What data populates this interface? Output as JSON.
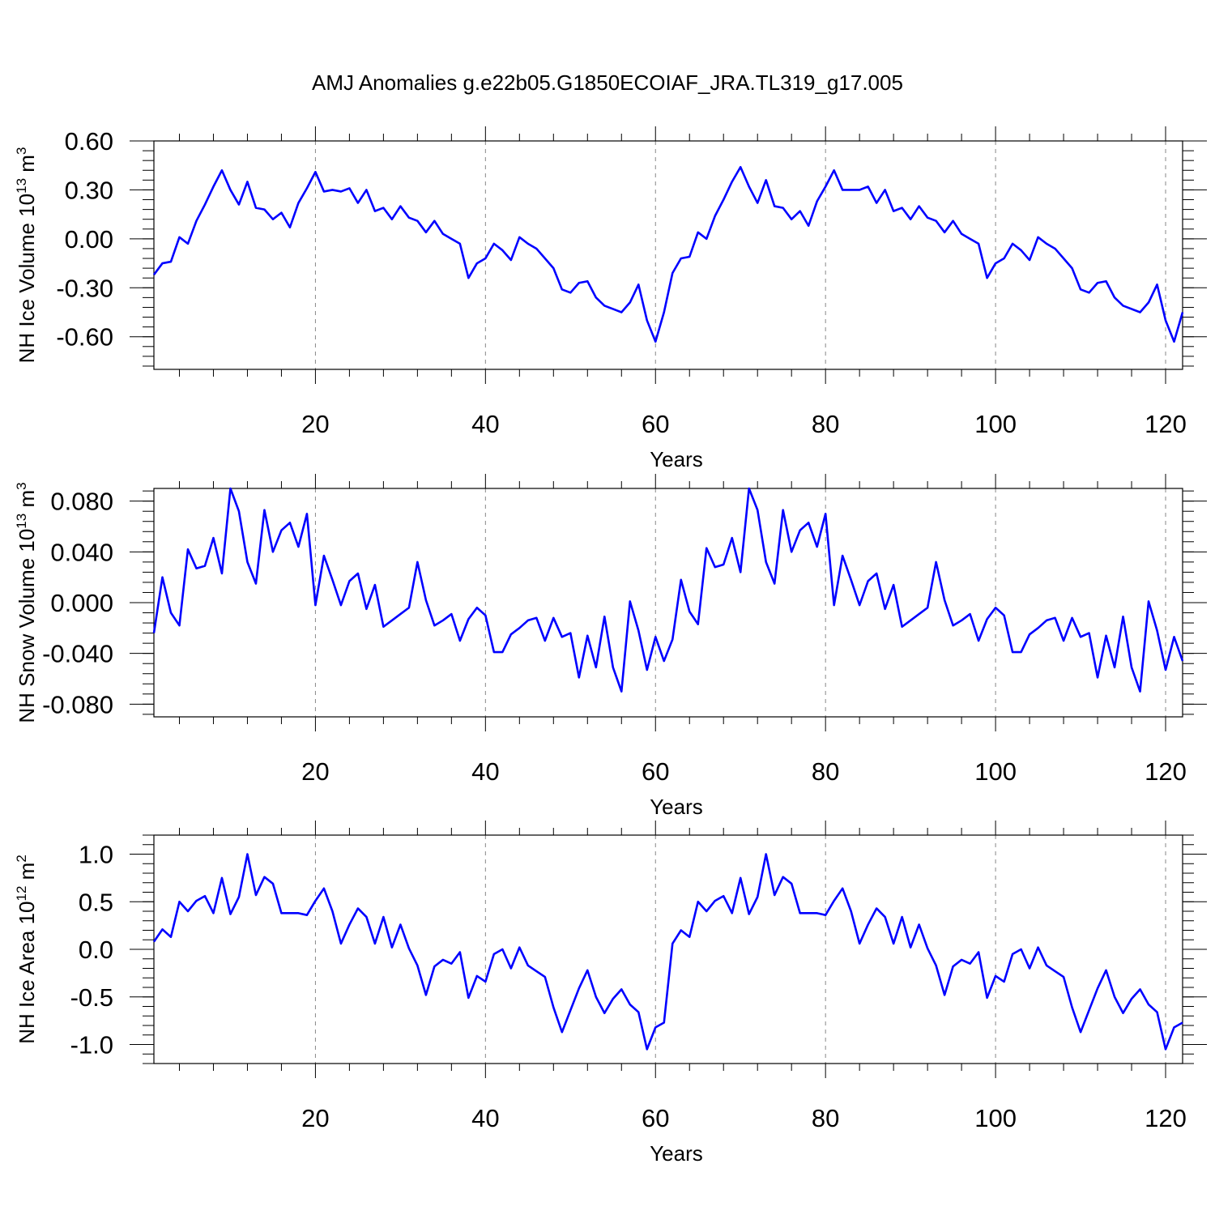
{
  "chart_data": [
    {
      "type": "line",
      "title": "AMJ Anomalies g.e22b05.G1850ECOIAF_JRA.TL319_g17.005",
      "xlabel": "Years",
      "ylabel": "NH Ice Volume 10",
      "ylabel_sup": "13",
      "ylabel_unit": "m",
      "ylabel_unit_sup": "3",
      "xlim": [
        1,
        122
      ],
      "ylim": [
        -0.8,
        0.6
      ],
      "x_ticks": [
        20,
        40,
        60,
        80,
        100,
        120
      ],
      "x_tick_labels": [
        "20",
        "40",
        "60",
        "80",
        "100",
        "120"
      ],
      "y_ticks": [
        0.6,
        0.3,
        0.0,
        -0.3,
        -0.6
      ],
      "y_tick_labels": [
        "0.60",
        "0.30",
        "0.00",
        "-0.30",
        "-0.60"
      ],
      "line_color": "#0000ff",
      "series": [
        {
          "name": "NH Ice Volume",
          "x_start": 1,
          "values": [
            -0.22,
            -0.15,
            -0.14,
            0.01,
            -0.03,
            0.11,
            0.21,
            0.32,
            0.42,
            0.3,
            0.21,
            0.35,
            0.19,
            0.18,
            0.12,
            0.16,
            0.07,
            0.22,
            0.31,
            0.41,
            0.29,
            0.3,
            0.29,
            0.31,
            0.22,
            0.3,
            0.17,
            0.19,
            0.12,
            0.2,
            0.13,
            0.11,
            0.04,
            0.11,
            0.03,
            0.0,
            -0.03,
            -0.24,
            -0.15,
            -0.12,
            -0.03,
            -0.07,
            -0.13,
            0.01,
            -0.03,
            -0.06,
            -0.12,
            -0.18,
            -0.31,
            -0.33,
            -0.27,
            -0.26,
            -0.36,
            -0.41,
            -0.43,
            -0.45,
            -0.39,
            -0.28,
            -0.5,
            -0.63,
            -0.45,
            -0.21,
            -0.12,
            -0.11,
            0.04,
            0.0,
            0.14,
            0.24,
            0.35,
            0.44,
            0.32,
            0.22,
            0.36,
            0.2,
            0.19,
            0.12,
            0.17,
            0.08,
            0.23,
            0.32,
            0.42,
            0.3,
            0.3,
            0.3,
            0.32,
            0.22,
            0.3,
            0.17,
            0.19,
            0.12,
            0.2,
            0.13,
            0.11,
            0.04,
            0.11,
            0.03,
            0.0,
            -0.03,
            -0.24,
            -0.15,
            -0.12,
            -0.03,
            -0.07,
            -0.13,
            0.01,
            -0.03,
            -0.06,
            -0.12,
            -0.18,
            -0.31,
            -0.33,
            -0.27,
            -0.26,
            -0.36,
            -0.41,
            -0.43,
            -0.45,
            -0.39,
            -0.28,
            -0.5,
            -0.63,
            -0.45
          ]
        }
      ]
    },
    {
      "type": "line",
      "title": "",
      "xlabel": "Years",
      "ylabel": "NH Snow Volume 10",
      "ylabel_sup": "13",
      "ylabel_unit": "m",
      "ylabel_unit_sup": "3",
      "xlim": [
        1,
        122
      ],
      "ylim": [
        -0.09,
        0.09
      ],
      "x_ticks": [
        20,
        40,
        60,
        80,
        100,
        120
      ],
      "x_tick_labels": [
        "20",
        "40",
        "60",
        "80",
        "100",
        "120"
      ],
      "y_ticks": [
        0.08,
        0.04,
        0.0,
        -0.04,
        -0.08
      ],
      "y_tick_labels": [
        "0.080",
        "0.040",
        "0.000",
        "-0.040",
        "-0.080"
      ],
      "line_color": "#0000ff",
      "series": [
        {
          "name": "NH Snow Volume",
          "x_start": 1,
          "values": [
            -0.024,
            0.02,
            -0.008,
            -0.018,
            0.042,
            0.027,
            0.029,
            0.051,
            0.023,
            0.09,
            0.072,
            0.032,
            0.015,
            0.073,
            0.04,
            0.057,
            0.063,
            0.044,
            0.07,
            -0.002,
            0.037,
            0.018,
            -0.002,
            0.017,
            0.023,
            -0.005,
            0.014,
            -0.019,
            -0.014,
            -0.009,
            -0.004,
            0.032,
            0.002,
            -0.018,
            -0.014,
            -0.009,
            -0.03,
            -0.013,
            -0.004,
            -0.01,
            -0.039,
            -0.039,
            -0.025,
            -0.02,
            -0.014,
            -0.012,
            -0.03,
            -0.012,
            -0.027,
            -0.024,
            -0.059,
            -0.026,
            -0.051,
            -0.011,
            -0.051,
            -0.07,
            0.001,
            -0.022,
            -0.053,
            -0.027,
            -0.046,
            -0.029,
            0.018,
            -0.007,
            -0.017,
            0.043,
            0.028,
            0.03,
            0.051,
            0.024,
            0.09,
            0.073,
            0.032,
            0.015,
            0.073,
            0.04,
            0.057,
            0.063,
            0.044,
            0.07,
            -0.002,
            0.037,
            0.018,
            -0.002,
            0.017,
            0.023,
            -0.005,
            0.014,
            -0.019,
            -0.014,
            -0.009,
            -0.004,
            0.032,
            0.002,
            -0.018,
            -0.014,
            -0.009,
            -0.03,
            -0.013,
            -0.004,
            -0.01,
            -0.039,
            -0.039,
            -0.025,
            -0.02,
            -0.014,
            -0.012,
            -0.03,
            -0.012,
            -0.027,
            -0.024,
            -0.059,
            -0.026,
            -0.051,
            -0.011,
            -0.051,
            -0.07,
            0.001,
            -0.022,
            -0.053,
            -0.027,
            -0.046
          ]
        }
      ]
    },
    {
      "type": "line",
      "title": "",
      "xlabel": "Years",
      "ylabel": "NH Ice Area 10",
      "ylabel_sup": "12",
      "ylabel_unit": "m",
      "ylabel_unit_sup": "2",
      "xlim": [
        1,
        122
      ],
      "ylim": [
        -1.2,
        1.2
      ],
      "x_ticks": [
        20,
        40,
        60,
        80,
        100,
        120
      ],
      "x_tick_labels": [
        "20",
        "40",
        "60",
        "80",
        "100",
        "120"
      ],
      "y_ticks": [
        1.0,
        0.5,
        0.0,
        -0.5,
        -1.0
      ],
      "y_tick_labels": [
        "1.0",
        "0.5",
        "0.0",
        "-0.5",
        "-1.0"
      ],
      "line_color": "#0000ff",
      "series": [
        {
          "name": "NH Ice Area",
          "x_start": 1,
          "values": [
            0.08,
            0.21,
            0.13,
            0.5,
            0.4,
            0.51,
            0.56,
            0.38,
            0.75,
            0.37,
            0.55,
            1.0,
            0.57,
            0.76,
            0.69,
            0.38,
            0.38,
            0.38,
            0.36,
            0.51,
            0.64,
            0.4,
            0.06,
            0.26,
            0.43,
            0.34,
            0.06,
            0.34,
            0.02,
            0.26,
            0.01,
            -0.17,
            -0.48,
            -0.18,
            -0.11,
            -0.15,
            -0.03,
            -0.51,
            -0.28,
            -0.34,
            -0.05,
            0.0,
            -0.2,
            0.02,
            -0.17,
            -0.23,
            -0.29,
            -0.61,
            -0.87,
            -0.64,
            -0.41,
            -0.22,
            -0.5,
            -0.67,
            -0.52,
            -0.42,
            -0.58,
            -0.66,
            -1.05,
            -0.82,
            -0.77,
            0.06,
            0.2,
            0.13,
            0.5,
            0.4,
            0.51,
            0.56,
            0.38,
            0.75,
            0.37,
            0.55,
            1.0,
            0.57,
            0.76,
            0.69,
            0.38,
            0.38,
            0.38,
            0.36,
            0.51,
            0.64,
            0.4,
            0.06,
            0.26,
            0.43,
            0.34,
            0.06,
            0.34,
            0.02,
            0.26,
            0.01,
            -0.17,
            -0.48,
            -0.18,
            -0.11,
            -0.15,
            -0.03,
            -0.51,
            -0.28,
            -0.34,
            -0.05,
            0.0,
            -0.2,
            0.02,
            -0.17,
            -0.23,
            -0.29,
            -0.61,
            -0.87,
            -0.64,
            -0.41,
            -0.22,
            -0.5,
            -0.67,
            -0.52,
            -0.42,
            -0.58,
            -0.66,
            -1.05,
            -0.82,
            -0.77
          ]
        }
      ]
    }
  ]
}
